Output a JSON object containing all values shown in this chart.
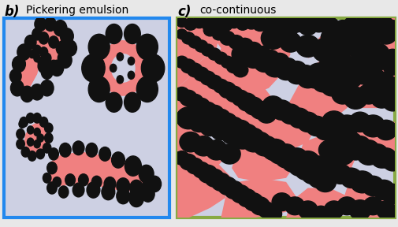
{
  "fig_width": 5.06,
  "fig_height": 2.88,
  "dpi": 100,
  "bg_color": "#e8e8e8",
  "panel_b": {
    "label": "b)",
    "title": "Pickering emulsion",
    "bg_color": "#cdd0e3",
    "border_color": "#2288ee",
    "salmon_color": "#f08080",
    "circle_color": "#111111"
  },
  "panel_c": {
    "label": "c)",
    "title": "co-continuous",
    "bg_color": "#cdd0e3",
    "border_color": "#88aa44",
    "salmon_color": "#f08080",
    "circle_color": "#111111"
  }
}
